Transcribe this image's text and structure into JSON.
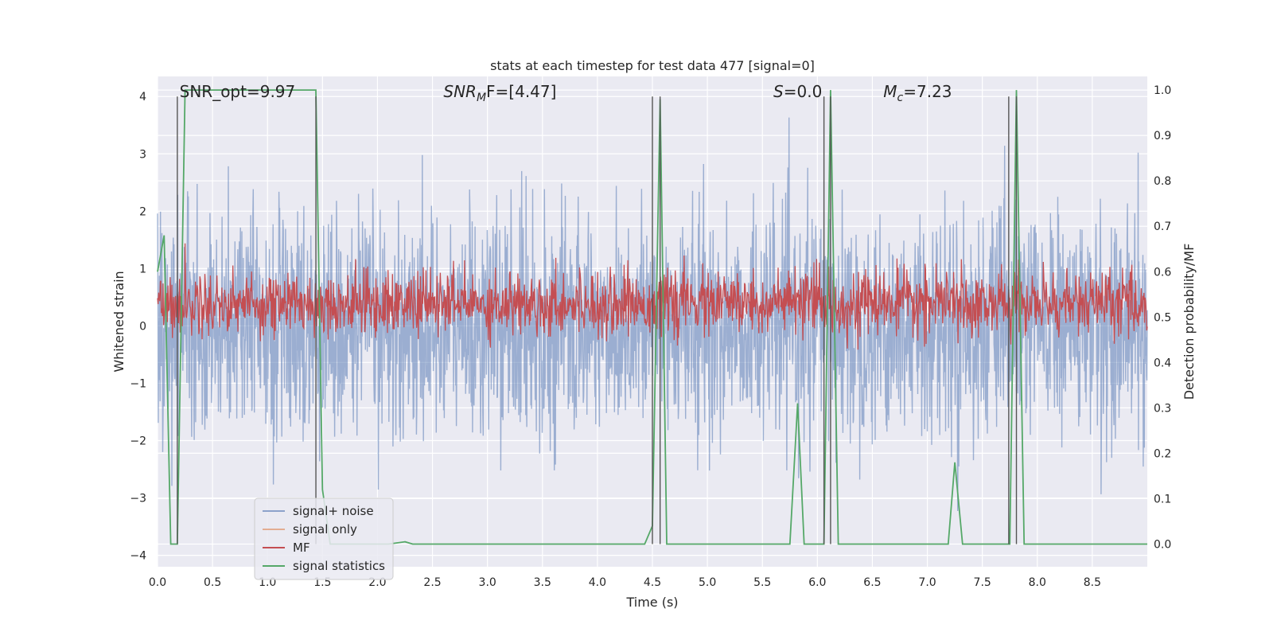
{
  "chart_data": {
    "type": "line",
    "title": "stats at each timestep for test data 477 [signal=0]",
    "xlabel": "Time (s)",
    "ylabel_left": "Whitened strain",
    "ylabel_right": "Detection probability/MF",
    "xlim": [
      0.0,
      9.0
    ],
    "ylim_left": [
      -4.2,
      4.35
    ],
    "ylim_right": [
      -0.05,
      1.03
    ],
    "x_ticks": [
      "0.0",
      "0.5",
      "1.0",
      "1.5",
      "2.0",
      "2.5",
      "3.0",
      "3.5",
      "4.0",
      "4.5",
      "5.0",
      "5.5",
      "6.0",
      "6.5",
      "7.0",
      "7.5",
      "8.0",
      "8.5"
    ],
    "y_ticks_left": [
      "4",
      "3",
      "2",
      "1",
      "0",
      "−1",
      "−2",
      "−3",
      "−4"
    ],
    "y_ticks_right": [
      "1.0",
      "0.9",
      "0.8",
      "0.7",
      "0.6",
      "0.5",
      "0.4",
      "0.3",
      "0.2",
      "0.1",
      "0.0"
    ],
    "grid": true,
    "legend_position": "lower-left",
    "annotations": [
      {
        "text": "SNR_opt=9.97",
        "x": 0.2
      },
      {
        "base": "SNR",
        "sub": "M",
        "tail": "F=[4.47]",
        "x": 2.6
      },
      {
        "base": "S",
        "sub": "",
        "tail": "=0.0",
        "x": 5.6
      },
      {
        "base": "M",
        "sub": "c",
        "tail": "=7.23",
        "x": 6.6
      }
    ],
    "vlines": [
      0.18,
      1.44,
      4.5,
      4.57,
      6.06,
      6.12,
      7.74,
      7.81
    ],
    "series": [
      {
        "name": "signal+ noise",
        "color": "#4c72b0",
        "alpha": 0.5,
        "axis": "left",
        "noise": {
          "std": 0.95,
          "count": 2700
        }
      },
      {
        "name": "signal only",
        "color": "#dd8452",
        "alpha": 0.6,
        "axis": "left",
        "values_description_constant": 0.0
      },
      {
        "name": "MF",
        "color": "#c44e52",
        "axis": "right",
        "noise": {
          "mean": 0.53,
          "std": 0.035,
          "count": 1800
        }
      },
      {
        "name": "signal statistics",
        "color": "#55a868",
        "axis": "right",
        "x": [
          0.0,
          0.06,
          0.12,
          0.18,
          0.25,
          1.44,
          1.5,
          1.57,
          1.7,
          2.1,
          2.25,
          2.32,
          4.43,
          4.5,
          4.57,
          4.63,
          5.75,
          5.82,
          5.88,
          6.0,
          6.06,
          6.12,
          6.19,
          7.19,
          7.25,
          7.32,
          7.69,
          7.75,
          7.81,
          7.88,
          9.0
        ],
        "y": [
          0.6,
          0.68,
          0.0,
          0.0,
          1.0,
          1.0,
          0.12,
          0.0,
          0.0,
          0.0,
          0.005,
          0.0,
          0.0,
          0.04,
          0.98,
          0.0,
          0.0,
          0.31,
          0.0,
          0.0,
          0.0,
          1.0,
          0.0,
          0.0,
          0.18,
          0.0,
          0.0,
          0.0,
          1.0,
          0.0,
          0.0
        ]
      }
    ]
  }
}
